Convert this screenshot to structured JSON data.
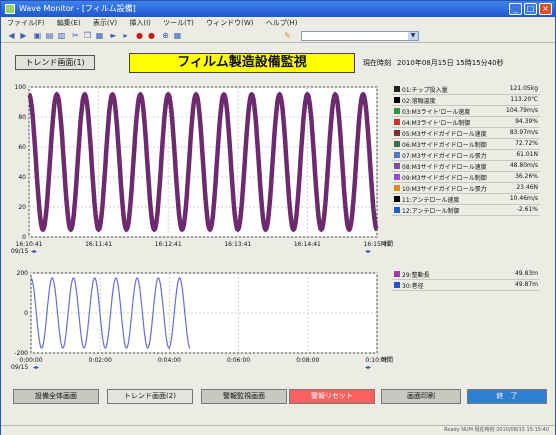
{
  "window": {
    "title": "Wave Monitor - [フィルム設備]",
    "menus": [
      "ファイル(F)",
      "編集(E)",
      "表示(V)",
      "挿入(I)",
      "ツール(T)",
      "ウィンドウ(W)",
      "ヘルプ(H)"
    ]
  },
  "header": {
    "trend_button": "トレンド画面(1)",
    "banner": "フィルム製造設備監視",
    "time_label": "現在時刻",
    "time_value": "2010年08月15日 15時15分40秒"
  },
  "chart_data": [
    {
      "type": "line",
      "title": "",
      "xlabel": "時間",
      "ylabel": "",
      "ylim": [
        0,
        100
      ],
      "x_date": "09/15",
      "x_ticks": [
        "16:10:41",
        "16:11:41",
        "16:12:41",
        "16:13:41",
        "16:14:41",
        "16:15:41"
      ],
      "y_ticks": [
        0,
        20,
        40,
        60,
        80,
        100
      ],
      "series": [
        {
          "name": "01:チップ投入量",
          "wave": {
            "amplitude": 45,
            "center": 50,
            "cycles": 12.5
          }
        }
      ],
      "grid": true
    },
    {
      "type": "line",
      "title": "",
      "xlabel": "時間",
      "ylabel": "",
      "ylim": [
        -200,
        200
      ],
      "x_date": "09/15",
      "x_ticks": [
        "0:00:00",
        "0:02:00",
        "0:04:00",
        "0:06:00",
        "0:08:00",
        "0:10:00"
      ],
      "y_ticks": [
        -200,
        0,
        200
      ],
      "series": [
        {
          "name": "29:整動長",
          "wave": {
            "amplitude": 175,
            "center": 0,
            "cycles": 7.5,
            "span": 0.46
          }
        }
      ],
      "grid": true
    }
  ],
  "legend_top": [
    {
      "label": "01:チップ投入量",
      "value": "121.05kg",
      "color": "#222222"
    },
    {
      "label": "02:溶融温度",
      "value": "113.20℃",
      "color": "#000000"
    },
    {
      "label": "03:M3ライト'ロール速度",
      "value": "104.79m/s",
      "color": "#2f9a3a"
    },
    {
      "label": "04:M3ライト'ロール制御",
      "value": "94.39%",
      "color": "#d22d2d"
    },
    {
      "label": "05:M3サイドガイドロール速度",
      "value": "83.97m/s",
      "color": "#7a3030"
    },
    {
      "label": "06:M3サイドガイドロール制御",
      "value": "72.72%",
      "color": "#3a6f4a"
    },
    {
      "label": "07:M3サイドガイドロール張力",
      "value": "61.01N",
      "color": "#4a78c8"
    },
    {
      "label": "08:M3サイドガイドロール速度",
      "value": "48.80m/s",
      "color": "#8a4aa8"
    },
    {
      "label": "09:M3サイドガイドロール制御",
      "value": "36.26%",
      "color": "#9a4ad0"
    },
    {
      "label": "10:M3サイドガイドロール張力",
      "value": "23.46N",
      "color": "#e08a1a"
    },
    {
      "label": "11:アンテロール速度",
      "value": "10.46m/s",
      "color": "#000000"
    },
    {
      "label": "12:アンテロール制御",
      "value": "-2.61%",
      "color": "#1c5fc8"
    }
  ],
  "legend_bottom": [
    {
      "label": "29:整動長",
      "value": "49.83m",
      "color": "#a83aa8"
    },
    {
      "label": "30:巻径",
      "value": "49.87m",
      "color": "#2a4fd0"
    }
  ],
  "buttons": [
    {
      "label": "設備全体画面",
      "bg": "#c8c8c0"
    },
    {
      "label": "トレンド画面(2)",
      "bg": "#e4e4de"
    },
    {
      "label": "警報監視画面",
      "bg": "#c8c8c0"
    },
    {
      "label": "警報リセット",
      "bg": "#ff6060"
    },
    {
      "label": "画面印刷",
      "bg": "#c8c8c0"
    },
    {
      "label": "終　了",
      "bg": "#2f7fd0"
    }
  ],
  "status": "Ready  NUM  現在時刻 2010/08/15 15:15:40",
  "colors": {
    "trace_top": "#6e2a6e",
    "trace_bottom": "#6a6ae0",
    "banner": "#ffff00"
  }
}
